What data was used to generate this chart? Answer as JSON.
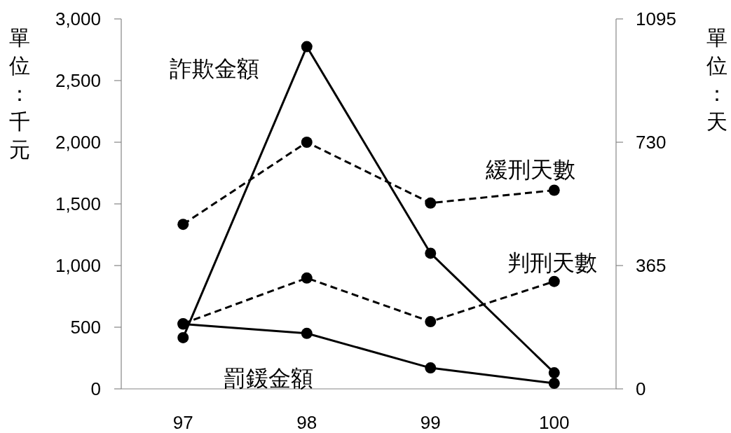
{
  "chart_data": {
    "type": "line",
    "categories": [
      "97",
      "98",
      "99",
      "100"
    ],
    "ylabel": "單位：千元",
    "y2label": "單位：天",
    "ylim": [
      0,
      3000
    ],
    "yticks": [
      0,
      500,
      {
        "value": 1000,
        "label": "1,000"
      },
      {
        "value": 1500,
        "label": "1,500"
      },
      {
        "value": 2000,
        "label": "2,000"
      },
      {
        "value": 2500,
        "label": "2,500"
      },
      {
        "value": 3000,
        "label": "3,000"
      }
    ],
    "y2lim": [
      0,
      1095
    ],
    "y2ticks": [
      0,
      365,
      730,
      1095
    ],
    "marker": "circle",
    "series": [
      {
        "name": "詐欺金額",
        "color": "#000000",
        "line_style": "solid",
        "values": [
          415,
          2775,
          1100,
          130
        ]
      },
      {
        "name": "罰鍰金額",
        "color": "#000000",
        "line_style": "solid",
        "values": [
          525,
          450,
          170,
          45
        ]
      },
      {
        "name": "緩刑天數",
        "color": "#000000",
        "line_style": "dashed",
        "axis": "y2",
        "values": [
          487,
          730,
          550,
          588
        ]
      },
      {
        "name": "判刑天數",
        "color": "#000000",
        "line_style": "dashed",
        "axis": "y2",
        "values": [
          193,
          328,
          199,
          318
        ]
      }
    ]
  }
}
